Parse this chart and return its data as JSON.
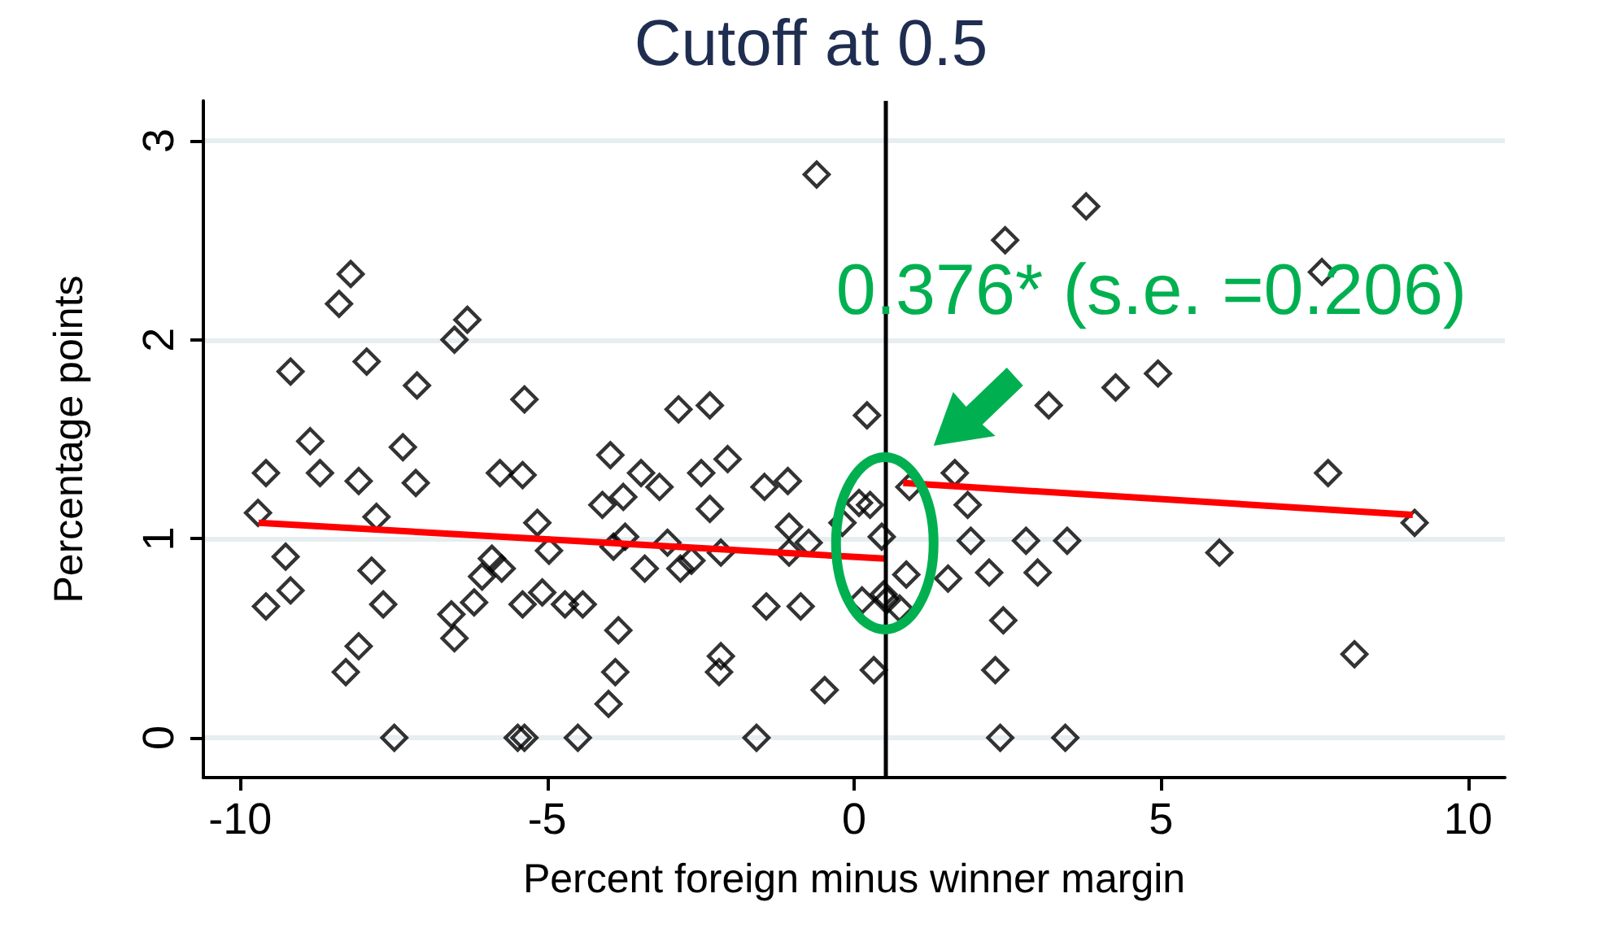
{
  "chart_data": {
    "type": "scatter",
    "title": "Cutoff at 0.5",
    "xlabel": "Percent foreign minus winner margin",
    "ylabel": "Percentage points",
    "annotations": [
      "0.376* (s.e. =0.206)"
    ],
    "xlim": [
      -10.6,
      10.6
    ],
    "xticks": [
      -10,
      -5,
      0,
      5,
      10
    ],
    "ylim": [
      -0.2,
      3.2
    ],
    "yticks": [
      0,
      1,
      2,
      3
    ],
    "grid": "y",
    "marker": "diamond",
    "ref_lines": [
      {
        "axis": "x",
        "value": 0.5,
        "color": "#000000"
      }
    ],
    "series": [
      {
        "color": "#000000",
        "x": [
          -9.71,
          -9.58,
          -9.58,
          -9.18,
          -9.26,
          -9.18,
          -8.86,
          -8.7,
          -8.39,
          -8.2,
          -8.28,
          -8.07,
          -8.07,
          -7.94,
          -7.86,
          -7.78,
          -7.67,
          -7.49,
          -7.35,
          -7.14,
          -7.12,
          -6.56,
          -6.51,
          -6.3,
          -6.51,
          -6.19,
          -6.06,
          -5.9,
          -5.77,
          -5.74,
          -5.48,
          -5.37,
          -5.4,
          -5.37,
          -5.4,
          -5.16,
          -5.08,
          -4.97,
          -4.71,
          -4.5,
          -4.42,
          -4.1,
          -3.97,
          -3.92,
          -3.89,
          -4.0,
          -3.84,
          -3.76,
          -3.73,
          -3.47,
          -3.41,
          -3.17,
          -3.04,
          -2.86,
          -2.83,
          -2.65,
          -2.49,
          -2.35,
          -2.35,
          -2.17,
          -2.2,
          -2.17,
          -2.06,
          -1.59,
          -1.46,
          -1.43,
          -1.08,
          -1.06,
          -0.87,
          -1.06,
          -0.74,
          -0.61,
          -0.48,
          -0.19,
          0.21,
          0.26,
          0.32,
          0.45,
          0.13,
          0.53,
          0.08,
          0.48,
          0.9,
          1.64,
          1.85,
          1.9,
          1.53,
          0.85,
          0.74,
          2.2,
          2.43,
          2.3,
          2.38,
          3.44,
          2.8,
          3.47,
          2.99,
          3.17,
          2.46,
          3.78,
          4.26,
          4.95,
          7.62,
          7.72,
          9.13,
          5.95,
          8.15
        ],
        "values": [
          1.13,
          1.33,
          0.66,
          1.84,
          0.91,
          0.74,
          1.49,
          1.33,
          2.18,
          2.33,
          0.33,
          0.46,
          1.29,
          1.89,
          0.84,
          1.11,
          0.67,
          0,
          1.46,
          1.28,
          1.77,
          0.62,
          2.0,
          2.1,
          0.5,
          0.68,
          0.81,
          0.9,
          1.33,
          0.85,
          0,
          0,
          1.32,
          1.7,
          0.67,
          1.08,
          0.73,
          0.94,
          0.67,
          0,
          0.67,
          1.17,
          1.42,
          0.96,
          0.33,
          0.17,
          0.54,
          1.21,
          1.01,
          1.33,
          0.85,
          1.26,
          0.98,
          1.65,
          0.85,
          0.89,
          1.33,
          1.67,
          1.15,
          0.41,
          0.33,
          0.93,
          1.4,
          0,
          1.26,
          0.66,
          1.29,
          1.06,
          0.66,
          0.93,
          0.98,
          2.83,
          0.24,
          1.08,
          1.62,
          1.17,
          0.34,
          1.01,
          0.69,
          0.69,
          1.18,
          0.72,
          1.26,
          1.33,
          1.17,
          0.99,
          0.8,
          0.82,
          0.65,
          0.83,
          0.59,
          0.34,
          0,
          0,
          0.99,
          0.99,
          0.83,
          1.67,
          2.5,
          2.67,
          1.76,
          1.83,
          2.34,
          1.33,
          1.08,
          0.93,
          0.42
        ]
      },
      {
        "type": "line",
        "color": "#ff0000",
        "marker": "none",
        "x": [
          -9.7,
          0.5
        ],
        "values": [
          1.08,
          0.9
        ]
      },
      {
        "type": "line",
        "color": "#ff0000",
        "marker": "none",
        "x": [
          0.8,
          9.1
        ],
        "values": [
          1.28,
          1.12
        ]
      }
    ]
  }
}
